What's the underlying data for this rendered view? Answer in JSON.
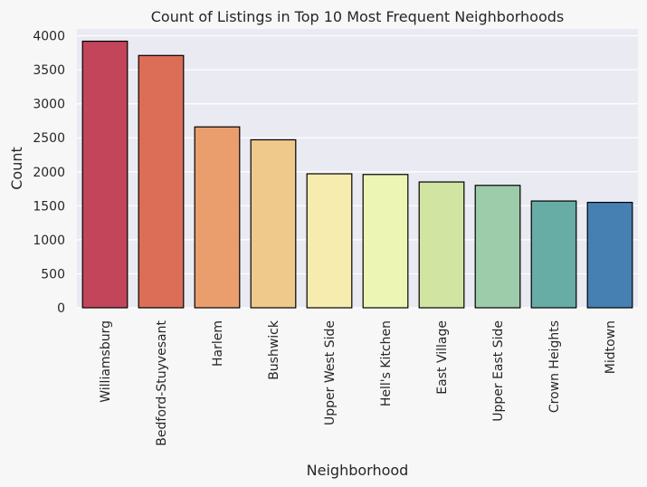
{
  "chart_data": {
    "type": "bar",
    "title": "Count of Listings in Top 10 Most Frequent Neighborhoods",
    "xlabel": "Neighborhood",
    "ylabel": "Count",
    "ylim": [
      0,
      4100
    ],
    "yticks": [
      0,
      500,
      1000,
      1500,
      2000,
      2500,
      3000,
      3500,
      4000
    ],
    "grid": true,
    "categories": [
      "Williamsburg",
      "Bedford-Stuyvesant",
      "Harlem",
      "Bushwick",
      "Upper West Side",
      "Hell's Kitchen",
      "East Village",
      "Upper East Side",
      "Crown Heights",
      "Midtown"
    ],
    "values": [
      3920,
      3710,
      2660,
      2470,
      1970,
      1960,
      1850,
      1800,
      1570,
      1550
    ],
    "colors": [
      "#c2455a",
      "#dc6e57",
      "#ea9e6e",
      "#efc98b",
      "#f6ecb0",
      "#edf5b4",
      "#d2e4a2",
      "#9dccaa",
      "#67ada6",
      "#4680b3"
    ]
  }
}
